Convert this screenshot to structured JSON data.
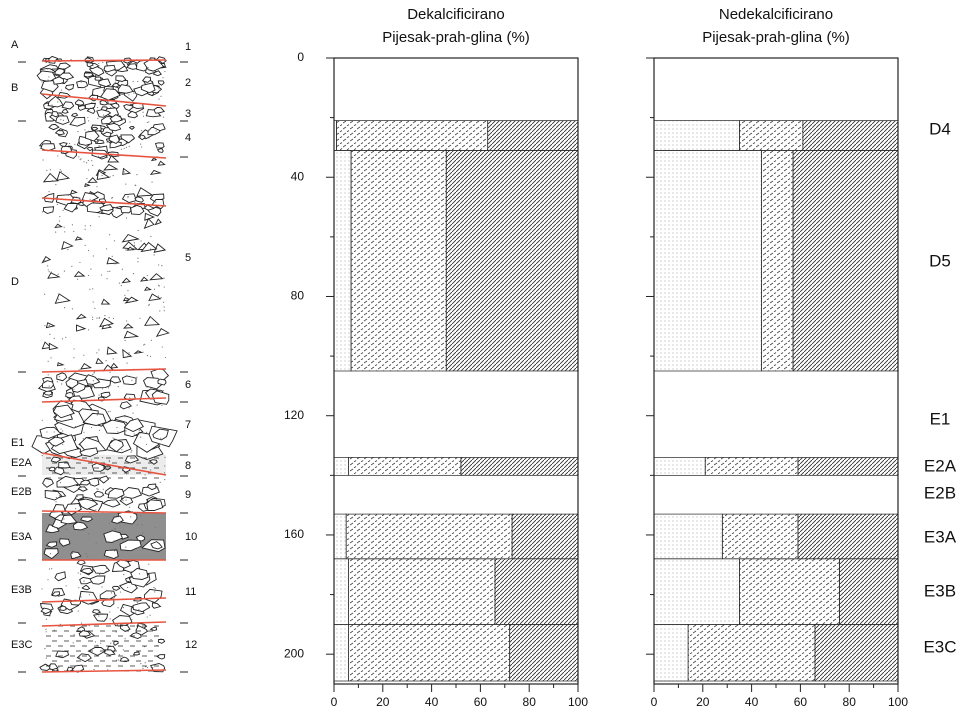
{
  "column": {
    "units": [
      "A",
      "B",
      "D",
      "E1",
      "E2A",
      "E2B",
      "E3A",
      "E3B",
      "E3C"
    ],
    "layers": [
      "1",
      "2",
      "3",
      "4",
      "5",
      "6",
      "7",
      "8",
      "9",
      "10",
      "11",
      "12"
    ]
  },
  "zones": [
    "D4",
    "D5",
    "E1",
    "E2A",
    "E2B",
    "E3A",
    "E3B",
    "E3C"
  ],
  "chart_data": [
    {
      "type": "area",
      "title": "Dekalcificirano",
      "subtitle": "Pijesak-prah-glina (%)",
      "depth_top": [
        21,
        31,
        134,
        153,
        168,
        190
      ],
      "depth_bottom": [
        31,
        105,
        140,
        168,
        190,
        209
      ],
      "series": [
        {
          "pattern": "dots",
          "color": "#8a8a8a",
          "values": [
            1,
            7,
            6,
            5,
            6,
            6
          ]
        },
        {
          "pattern": "dashes",
          "color": "#444444",
          "values": [
            62,
            39,
            46,
            68,
            60,
            66
          ]
        },
        {
          "pattern": "hatch",
          "color": "#333333",
          "values": [
            37,
            54,
            48,
            27,
            34,
            28
          ]
        }
      ],
      "xlim": [
        0,
        100
      ],
      "xticks": [
        0,
        20,
        40,
        60,
        80,
        100
      ],
      "x_minor_ticks": [
        10,
        30,
        50,
        70,
        90
      ],
      "ylim": [
        0,
        210
      ],
      "yticks": [
        0,
        40,
        80,
        120,
        160,
        200
      ],
      "y_minor_ticks": [
        20,
        60,
        100,
        140,
        180
      ],
      "show_ytick_labels": true
    },
    {
      "type": "area",
      "title": "Nedekalcificirano",
      "subtitle": "Pijesak-prah-glina (%)",
      "depth_top": [
        21,
        31,
        134,
        153,
        168,
        190
      ],
      "depth_bottom": [
        31,
        105,
        140,
        168,
        190,
        209
      ],
      "series": [
        {
          "pattern": "dots",
          "color": "#8a8a8a",
          "values": [
            35,
            44,
            21,
            28,
            35,
            14
          ]
        },
        {
          "pattern": "dashes",
          "color": "#444444",
          "values": [
            26,
            13,
            38,
            31,
            41,
            52
          ]
        },
        {
          "pattern": "hatch",
          "color": "#333333",
          "values": [
            39,
            43,
            41,
            41,
            24,
            34
          ]
        }
      ],
      "xlim": [
        0,
        100
      ],
      "xticks": [
        0,
        20,
        40,
        60,
        80,
        100
      ],
      "x_minor_ticks": [
        10,
        30,
        50,
        70,
        90
      ],
      "ylim": [
        0,
        210
      ],
      "yticks": [
        0,
        40,
        80,
        120,
        160,
        200
      ],
      "y_minor_ticks": [
        20,
        60,
        100,
        140,
        180
      ],
      "show_ytick_labels": false
    }
  ]
}
